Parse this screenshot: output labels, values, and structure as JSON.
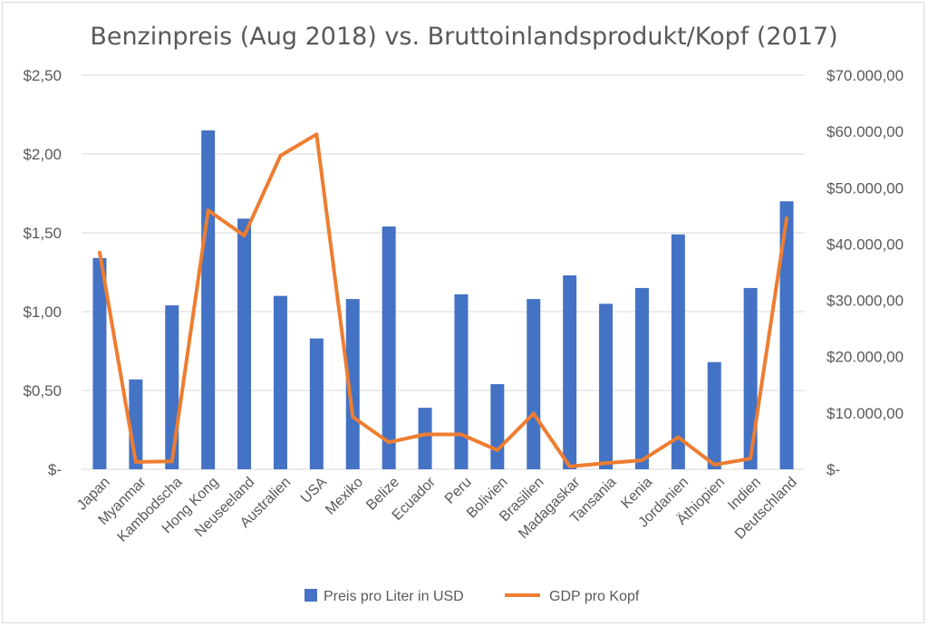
{
  "chart_data": {
    "type": "bar",
    "title": "Benzinpreis (Aug 2018) vs. Bruttoinlandsprodukt/Kopf (2017)",
    "categories": [
      "Japan",
      "Myanmar",
      "Kambodscha",
      "Hong Kong",
      "Neuseeland",
      "Australien",
      "USA",
      "Mexiko",
      "Belize",
      "Ecuador",
      "Peru",
      "Bolivien",
      "Brasilien",
      "Madagaskar",
      "Tansania",
      "Kenia",
      "Jordanien",
      "Äthiopien",
      "Indien",
      "Deutschland"
    ],
    "series": [
      {
        "name": "Preis pro Liter in USD",
        "type": "bar",
        "axis": "left",
        "color": "#4472c4",
        "values": [
          1.34,
          0.57,
          1.04,
          2.15,
          1.59,
          1.1,
          0.83,
          1.08,
          1.54,
          0.39,
          1.11,
          0.54,
          1.08,
          1.23,
          1.05,
          1.15,
          1.49,
          0.68,
          1.15,
          1.7
        ]
      },
      {
        "name": "GDP pro Kopf",
        "type": "line",
        "axis": "right",
        "color": "#ed7d31",
        "values": [
          38500,
          1300,
          1400,
          46000,
          41500,
          55700,
          59500,
          9300,
          4800,
          6200,
          6200,
          3400,
          9900,
          500,
          1100,
          1600,
          5700,
          800,
          1900,
          44600
        ]
      }
    ],
    "y_left": {
      "ylim": [
        0,
        2.5
      ],
      "ticks": [
        "$-",
        "$0,50",
        "$1,00",
        "$1,50",
        "$2,00",
        "$2,50"
      ]
    },
    "y_right": {
      "ylim": [
        0,
        70000
      ],
      "ticks": [
        "$-",
        "$10.000,00",
        "$20.000,00",
        "$30.000,00",
        "$40.000,00",
        "$50.000,00",
        "$60.000,00",
        "$70.000,00"
      ]
    },
    "grid": true,
    "legend_position": "bottom"
  }
}
